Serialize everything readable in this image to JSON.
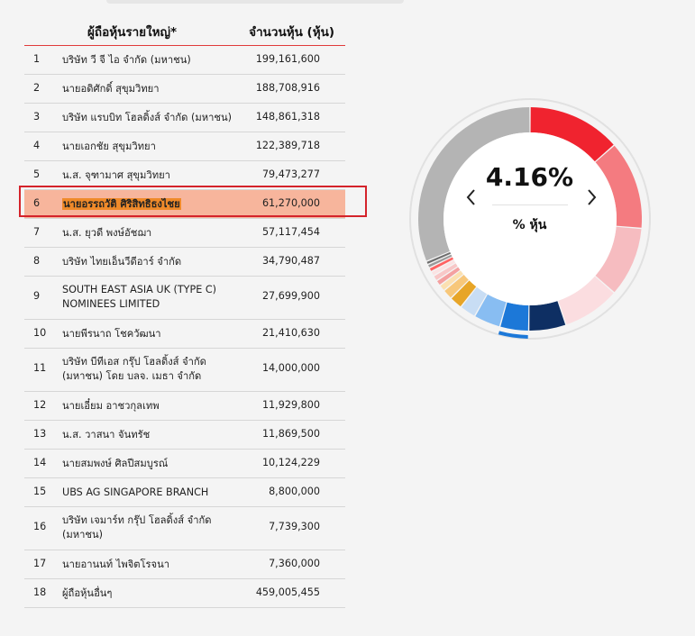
{
  "table": {
    "header_name": "ผู้ถือหุ้นรายใหญ่*",
    "header_shares": "จำนวนหุ้น (หุ้น)",
    "rows": [
      {
        "no": "1",
        "name": "บริษัท วี จี ไอ จำกัด (มหาชน)",
        "shares": "199,161,600"
      },
      {
        "no": "2",
        "name": "นายอดิศักดิ์ สุขุมวิทยา",
        "shares": "188,708,916"
      },
      {
        "no": "3",
        "name": "บริษัท แรบบิท โฮลดิ้งส์ จำกัด (มหาชน)",
        "shares": "148,861,318"
      },
      {
        "no": "4",
        "name": "นายเอกชัย สุขุมวิทยา",
        "shares": "122,389,718"
      },
      {
        "no": "5",
        "name": "น.ส. จุฑามาศ สุขุมวิทยา",
        "shares": "79,473,277"
      },
      {
        "no": "6",
        "name": "นายอรรถวัติ ศิริสิทธิธงไชย",
        "shares": "61,270,000"
      },
      {
        "no": "7",
        "name": "น.ส. ยุวดี พงษ์อัชฌา",
        "shares": "57,117,454"
      },
      {
        "no": "8",
        "name": "บริษัท ไทยเอ็นวีดีอาร์ จำกัด",
        "shares": "34,790,487"
      },
      {
        "no": "9",
        "name": "SOUTH EAST ASIA UK (TYPE C) NOMINEES LIMITED",
        "shares": "27,699,900"
      },
      {
        "no": "10",
        "name": "นายพีรนาถ โชควัฒนา",
        "shares": "21,410,630"
      },
      {
        "no": "11",
        "name": "บริษัท บีทีเอส กรุ๊ป โฮลดิ้งส์ จำกัด (มหาชน) โดย บลจ. เมธา จำกัด",
        "shares": "14,000,000"
      },
      {
        "no": "12",
        "name": "นายเอี๋ยม อาชวกุลเทพ",
        "shares": "11,929,800"
      },
      {
        "no": "13",
        "name": "น.ส. วาสนา จันทรัช",
        "shares": "11,869,500"
      },
      {
        "no": "14",
        "name": "นายสมพงษ์ ศิลปีสมบูรณ์",
        "shares": "10,124,229"
      },
      {
        "no": "15",
        "name": "UBS AG SINGAPORE BRANCH",
        "shares": "8,800,000"
      },
      {
        "no": "16",
        "name": "บริษัท เจมาร์ท กรุ๊ป โฮลดิ้งส์ จำกัด (มหาชน)",
        "shares": "7,739,300"
      },
      {
        "no": "17",
        "name": "นายอานนท์ ไพจิตโรจนา",
        "shares": "7,360,000"
      },
      {
        "no": "18",
        "name": "ผู้ถือหุ้นอื่นๆ",
        "shares": "459,005,455"
      }
    ]
  },
  "donut": {
    "center_value": "4.16%",
    "center_label": "% หุ้น",
    "prev_icon": "chevron-left-icon",
    "next_icon": "chevron-right-icon",
    "active_index": 5,
    "segments": [
      {
        "value": 199161600,
        "color": "#f0232f"
      },
      {
        "value": 188708916,
        "color": "#f47b80"
      },
      {
        "value": 148861318,
        "color": "#f6bcc0"
      },
      {
        "value": 122389718,
        "color": "#fbdde0"
      },
      {
        "value": 79473277,
        "color": "#0e2f63"
      },
      {
        "value": 61270000,
        "color": "#1c78d8"
      },
      {
        "value": 57117454,
        "color": "#88bdf2"
      },
      {
        "value": 34790487,
        "color": "#c8ddf4"
      },
      {
        "value": 27699900,
        "color": "#e7a528"
      },
      {
        "value": 21410630,
        "color": "#f7c77a"
      },
      {
        "value": 14000000,
        "color": "#fbe0b1"
      },
      {
        "value": 11929800,
        "color": "#f4a0a0"
      },
      {
        "value": 11869500,
        "color": "#f8c7c7"
      },
      {
        "value": 10124229,
        "color": "#fbe3e3"
      },
      {
        "value": 8800000,
        "color": "#ff6262"
      },
      {
        "value": 7739300,
        "color": "#9a9a9a"
      },
      {
        "value": 7360000,
        "color": "#6e6e6e"
      },
      {
        "value": 459005455,
        "color": "#b4b4b4"
      }
    ]
  }
}
